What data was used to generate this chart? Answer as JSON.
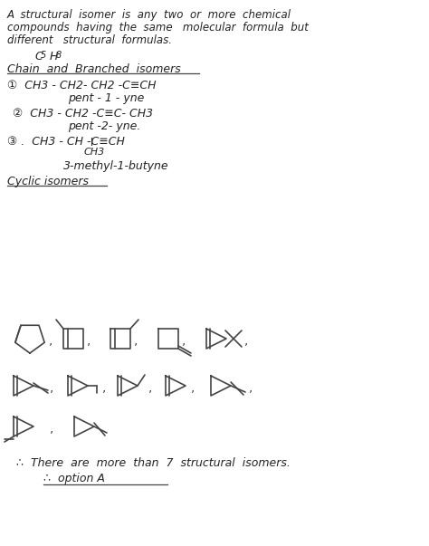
{
  "bg_color": "#ffffff",
  "text_color": "#333333",
  "title_line1": "A  structural  isomer  is  any  two  or  more  chemical",
  "title_line2": "compounds  having  the  same   molecular  formula  but",
  "title_line3": "different   structural  formulas.",
  "formula": "C5 H8",
  "section1": "Chain  and  Branched  isomers",
  "isomer1": "①  CH3 - CH2- CH2 -C≡CH",
  "isomer1_name": "pent - 1 - yne",
  "isomer2": "②  CH3 - CH2 -C≡C- CH3",
  "isomer2_name": "pent -2- yne.",
  "isomer3a": "③ .  CH3 - CH -C≡CH",
  "isomer3b": "CH3",
  "isomer3_name": "3-methyl-1-butyne",
  "section2": "Cyclic isomers",
  "conclusion": "∴  There  are  more  than  7  structural  isomers.",
  "option": "∴  option A",
  "lw": 1.2,
  "shape_color": "#444444"
}
